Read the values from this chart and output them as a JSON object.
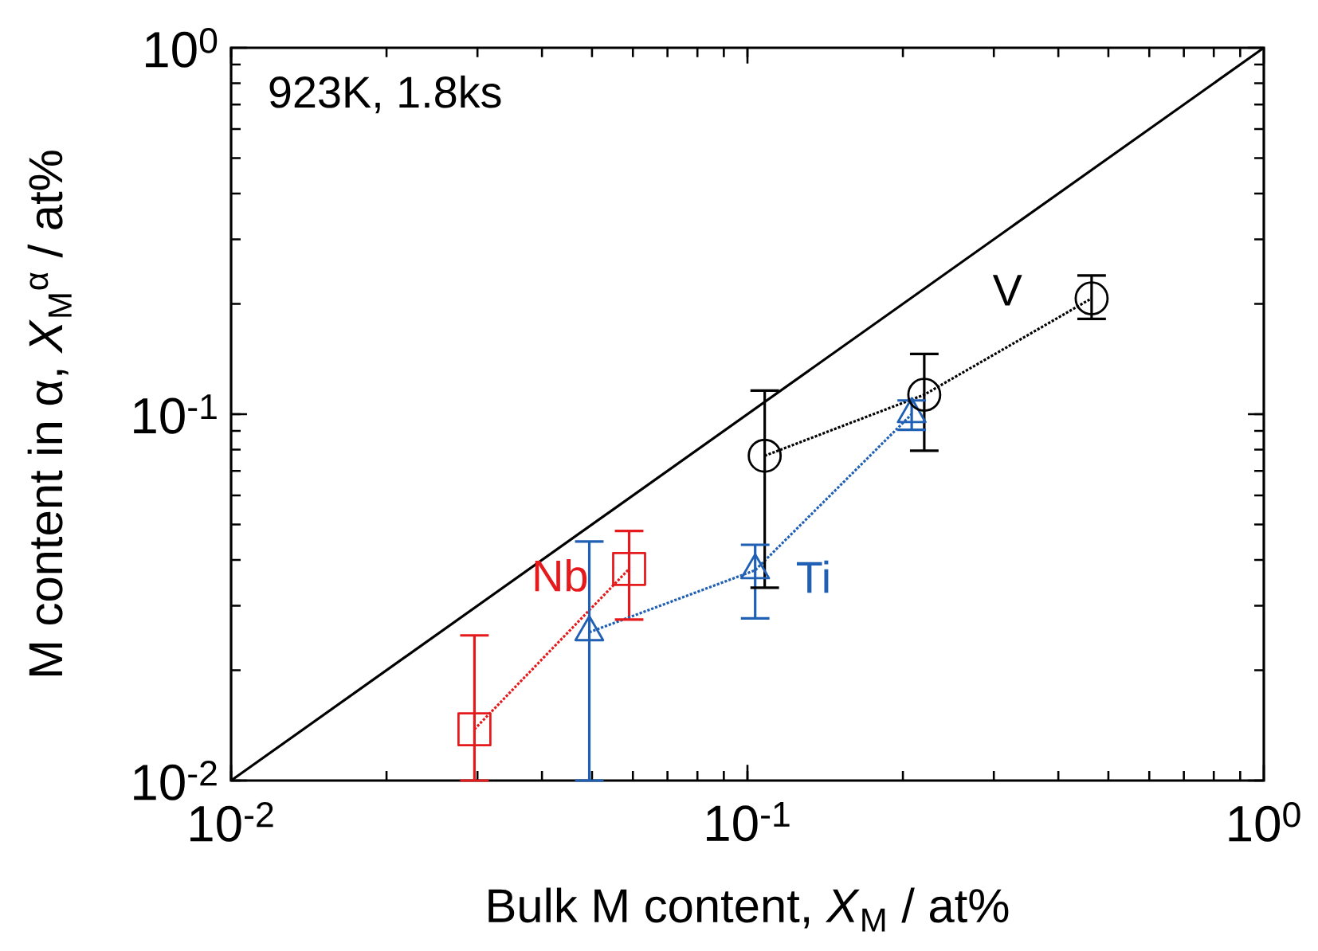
{
  "chart_data": {
    "type": "line",
    "xlabel": "Bulk M content, *X*$_{M}$ / at%",
    "ylabel": "M content in α, *X*$_{M}$$^{α}$ / at%",
    "annotations": [
      "923K, 1.8ks"
    ],
    "log": "xy",
    "grid": false,
    "xlim": [
      0.01,
      1
    ],
    "ylim": [
      0.01,
      1
    ],
    "xticks": [
      {
        "value": 0.01,
        "label": "10$^{-2}$"
      },
      {
        "value": 0.1,
        "label": "10$^{-1}$"
      },
      {
        "value": 1,
        "label": "10$^{0}$"
      }
    ],
    "yticks": [
      {
        "value": 0.01,
        "label": "10$^{-2}$"
      },
      {
        "value": 0.1,
        "label": "10$^{-1}$"
      },
      {
        "value": 1,
        "label": "10$^{0}$"
      }
    ],
    "series": [
      {
        "color": "#000000",
        "marker": "none",
        "line_style": "solid",
        "x": [
          0.01,
          1
        ],
        "values": [
          0.01,
          1
        ]
      },
      {
        "name": "Nb",
        "color": "#e41a1c",
        "marker": "square",
        "line_style": "dotted",
        "x": [
          0.0296,
          0.059
        ],
        "values": [
          0.0138,
          0.0378
        ],
        "errors": [
          [
            0.01,
            0.0249
          ],
          [
            0.0275,
            0.048
          ]
        ]
      },
      {
        "name": "Ti",
        "color": "#1f5fb4",
        "marker": "triangle",
        "line_style": "dotted",
        "x": [
          0.0494,
          0.1035,
          0.208
        ],
        "values": [
          0.0254,
          0.0375,
          0.1
        ],
        "errors": [
          [
            0.01,
            0.0449
          ],
          [
            0.0277,
            0.044
          ],
          [
            0.0906,
            0.109
          ]
        ]
      },
      {
        "name": "V",
        "color": "#000000",
        "marker": "circle",
        "line_style": "dotted",
        "x": [
          0.108,
          0.22,
          0.464
        ],
        "values": [
          0.077,
          0.113,
          0.207
        ],
        "errors": [
          [
            0.0336,
            0.116
          ],
          [
            0.0795,
            0.146
          ],
          [
            0.182,
            0.239
          ]
        ]
      }
    ]
  }
}
